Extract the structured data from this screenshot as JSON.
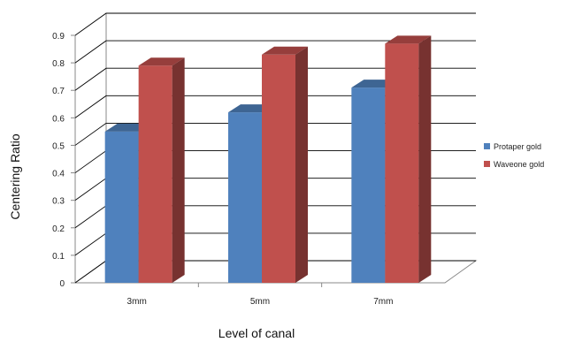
{
  "chart_data": {
    "type": "bar",
    "style": "3d-clustered-column",
    "title": "",
    "xlabel": "Level of canal",
    "ylabel": "Centering Ratio",
    "categories": [
      "3mm",
      "5mm",
      "7mm"
    ],
    "series": [
      {
        "name": "Protaper gold",
        "color": "#4f81bd",
        "values": [
          0.55,
          0.62,
          0.71
        ]
      },
      {
        "name": "Waveone gold",
        "color": "#c0504d",
        "values": [
          0.79,
          0.83,
          0.87
        ]
      }
    ],
    "ylim": [
      0,
      0.9
    ],
    "yticks": [
      "0",
      "0.1",
      "0.2",
      "0.3",
      "0.4",
      "0.5",
      "0.6",
      "0.7",
      "0.8",
      "0.9"
    ],
    "grid": true,
    "legend_position": "right"
  }
}
